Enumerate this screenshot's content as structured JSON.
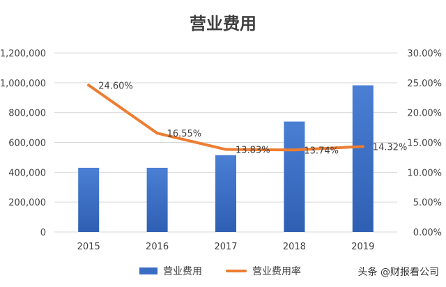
{
  "chart_data": {
    "type": "bar",
    "title": "营业费用",
    "categories": [
      "2015",
      "2016",
      "2017",
      "2018",
      "2019"
    ],
    "series": [
      {
        "name": "营业费用",
        "type": "bar",
        "axis": "left",
        "color": "#3a6cc4",
        "values": [
          430000,
          430000,
          515000,
          740000,
          983000
        ]
      },
      {
        "name": "营业费用率",
        "type": "line",
        "axis": "right",
        "color": "#ed7d31",
        "values": [
          0.246,
          0.1655,
          0.1383,
          0.1374,
          0.1432
        ],
        "labels": [
          "24.60%",
          "16.55%",
          "13.83%",
          "13.74%",
          "14.32%"
        ]
      }
    ],
    "y_left": {
      "min": 0,
      "max": 1200000,
      "ticks": [
        "0",
        "200,000",
        "400,000",
        "600,000",
        "800,000",
        "1,000,000",
        "1,200,000"
      ]
    },
    "y_right": {
      "min": 0,
      "max": 0.3,
      "ticks": [
        "0.00%",
        "5.00%",
        "10.00%",
        "15.00%",
        "20.00%",
        "25.00%",
        "30.00%"
      ]
    },
    "grid": true,
    "legend": "bottom"
  },
  "watermark": "头条 @财报看公司"
}
